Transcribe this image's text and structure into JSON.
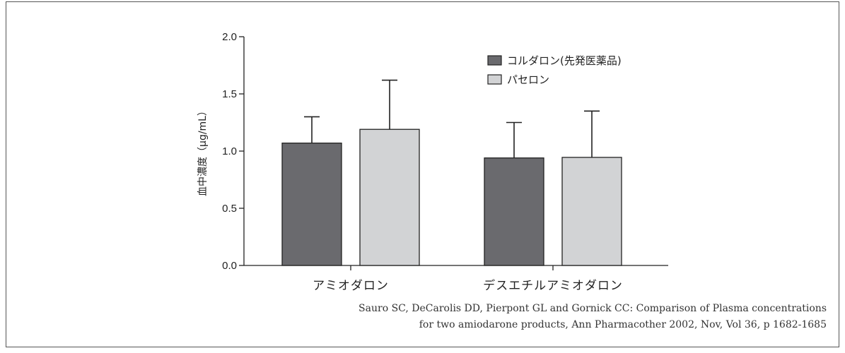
{
  "chart_data": {
    "type": "bar",
    "ylabel": "血中濃度（μg/mL）",
    "xlabel": "",
    "ylim": [
      0,
      2.0
    ],
    "yticks": [
      "0.0",
      "0.5",
      "1.0",
      "1.5",
      "2.0"
    ],
    "ytick_values": [
      0,
      0.5,
      1.0,
      1.5,
      2.0
    ],
    "categories": [
      "アミオダロン",
      "デスエチルアミオダロン"
    ],
    "series": [
      {
        "name": "コルダロン(先発医薬品)",
        "color": "#6a6a6e",
        "values": [
          1.07,
          0.94
        ],
        "error": [
          0.23,
          0.31
        ]
      },
      {
        "name": "パセロン",
        "color": "#d2d3d5",
        "values": [
          1.19,
          0.945
        ],
        "error": [
          0.43,
          0.405
        ]
      }
    ],
    "legend_position": "top-right",
    "grid": false,
    "error_bars": "upper only"
  },
  "citation": {
    "line1": "Sauro SC, DeCarolis DD, Pierpont GL and Gornick CC: Comparison of Plasma concentrations",
    "line2": "for two amiodarone products, Ann Pharmacother 2002, Nov, Vol 36, p 1682-1685"
  }
}
